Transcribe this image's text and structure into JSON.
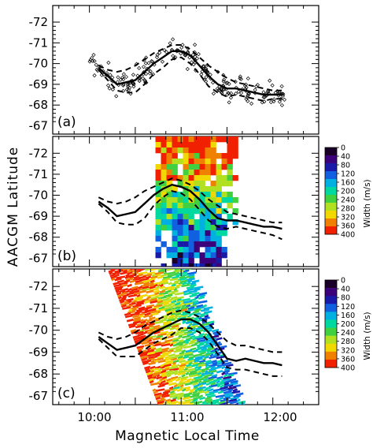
{
  "figure": {
    "ylabel": "AACGM Latitude",
    "xlabel": "Magnetic Local Time",
    "x_ticks": [
      "10:00",
      "11:00",
      "12:00"
    ],
    "y_ticks": [
      "-72",
      "-71",
      "-70",
      "-69",
      "-68",
      "-67"
    ],
    "colorbar": {
      "label": "Width (m/s)",
      "ticks": [
        "0",
        "40",
        "80",
        "120",
        "160",
        "200",
        "240",
        "280",
        "320",
        "360",
        "400"
      ],
      "range": [
        0,
        400
      ],
      "colors": [
        "#1a0028",
        "#3c007a",
        "#1a1aa8",
        "#1060e0",
        "#00b0e0",
        "#00d8a0",
        "#40d040",
        "#b0e020",
        "#f0d800",
        "#f08000",
        "#f02000"
      ]
    }
  },
  "chart_data": [
    {
      "type": "scatter",
      "panel_label": "(a)",
      "x_range_hours": [
        9.6,
        12.5
      ],
      "xlabel": "",
      "ylabel": "AACGM Latitude",
      "ylim": [
        -66.6,
        -72.8
      ],
      "grid": false,
      "scatter_marker": "open diamond",
      "scatter_point_count_approx": 220,
      "mean_line": {
        "x": [
          10.1,
          10.2,
          10.3,
          10.4,
          10.5,
          10.6,
          10.7,
          10.8,
          10.9,
          11.0,
          11.1,
          11.2,
          11.3,
          11.4,
          11.5,
          11.6,
          11.7,
          11.8,
          11.9,
          12.0,
          12.1
        ],
        "y": [
          -69.8,
          -69.4,
          -69.0,
          -69.1,
          -69.2,
          -69.6,
          -70.0,
          -70.3,
          -70.6,
          -70.6,
          -70.4,
          -69.9,
          -69.4,
          -69.0,
          -68.8,
          -68.8,
          -68.7,
          -68.6,
          -68.5,
          -68.5,
          -68.5
        ]
      },
      "upper_band": {
        "x": [
          10.1,
          10.2,
          10.3,
          10.4,
          10.5,
          10.6,
          10.7,
          10.8,
          10.9,
          11.0,
          11.1,
          11.2,
          11.3,
          11.4,
          11.5,
          11.6,
          11.7,
          11.8,
          11.9,
          12.0,
          12.1
        ],
        "y": [
          -69.9,
          -69.7,
          -69.6,
          -69.7,
          -69.9,
          -70.2,
          -70.5,
          -70.7,
          -70.9,
          -70.9,
          -70.7,
          -70.3,
          -69.9,
          -69.6,
          -69.3,
          -69.1,
          -69.0,
          -68.9,
          -68.8,
          -68.7,
          -68.7
        ]
      },
      "lower_band": {
        "x": [
          10.1,
          10.2,
          10.3,
          10.4,
          10.5,
          10.6,
          10.7,
          10.8,
          10.9,
          11.0,
          11.1,
          11.2,
          11.3,
          11.4,
          11.5,
          11.6,
          11.7,
          11.8,
          11.9,
          12.0,
          12.1
        ],
        "y": [
          -69.7,
          -69.2,
          -68.7,
          -68.6,
          -68.6,
          -69.0,
          -69.5,
          -69.8,
          -70.2,
          -70.3,
          -70.0,
          -69.5,
          -68.9,
          -68.6,
          -68.4,
          -68.5,
          -68.4,
          -68.3,
          -68.2,
          -68.3,
          -68.3
        ]
      }
    },
    {
      "type": "heatmap",
      "panel_label": "(b)",
      "x_range_hours": [
        9.6,
        12.5
      ],
      "ylim": [
        -66.6,
        -72.8
      ],
      "value_label": "Width (m/s)",
      "value_range": [
        0,
        400
      ],
      "data_extent_x": [
        10.75,
        11.6
      ],
      "data_extent_y": [
        -66.6,
        -72.8
      ],
      "mean_line": {
        "x": [
          10.1,
          10.2,
          10.3,
          10.4,
          10.5,
          10.6,
          10.7,
          10.8,
          10.9,
          11.0,
          11.1,
          11.2,
          11.3,
          11.4,
          11.5,
          11.6,
          11.7,
          11.8,
          11.9,
          12.0,
          12.1
        ],
        "y": [
          -69.7,
          -69.4,
          -69.0,
          -69.1,
          -69.2,
          -69.6,
          -70.0,
          -70.3,
          -70.5,
          -70.4,
          -70.2,
          -69.8,
          -69.3,
          -68.9,
          -68.8,
          -68.8,
          -68.7,
          -68.6,
          -68.5,
          -68.5,
          -68.4
        ]
      },
      "upper_band": {
        "x": [
          10.1,
          10.2,
          10.3,
          10.4,
          10.5,
          10.6,
          10.7,
          10.8,
          10.9,
          11.0,
          11.1,
          11.2,
          11.3,
          11.4,
          11.5,
          11.6,
          11.7,
          11.8,
          11.9,
          12.0,
          12.1
        ],
        "y": [
          -69.9,
          -69.7,
          -69.6,
          -69.7,
          -69.9,
          -70.2,
          -70.4,
          -70.6,
          -70.8,
          -70.7,
          -70.5,
          -70.2,
          -69.8,
          -69.5,
          -69.2,
          -69.1,
          -69.0,
          -68.9,
          -68.8,
          -68.7,
          -68.7
        ]
      },
      "lower_band": {
        "x": [
          10.1,
          10.2,
          10.3,
          10.4,
          10.5,
          10.6,
          10.7,
          10.8,
          10.9,
          11.0,
          11.1,
          11.2,
          11.3,
          11.4,
          11.5,
          11.6,
          11.7,
          11.8,
          11.9,
          12.0,
          12.1
        ],
        "y": [
          -69.6,
          -69.2,
          -68.7,
          -68.6,
          -68.6,
          -68.9,
          -69.5,
          -69.9,
          -70.2,
          -70.1,
          -69.8,
          -69.3,
          -68.8,
          -68.5,
          -68.4,
          -68.5,
          -68.4,
          -68.3,
          -68.2,
          -68.1,
          -67.9
        ]
      }
    },
    {
      "type": "heatmap",
      "panel_label": "(c)",
      "x_range_hours": [
        9.6,
        12.5
      ],
      "ylim": [
        -66.6,
        -72.8
      ],
      "value_label": "Width (m/s)",
      "value_range": [
        0,
        400
      ],
      "data_extent_x": [
        10.2,
        11.55
      ],
      "data_extent_y": [
        -66.6,
        -72.8
      ],
      "mean_line": {
        "x": [
          10.1,
          10.2,
          10.3,
          10.4,
          10.5,
          10.6,
          10.7,
          10.8,
          10.9,
          11.0,
          11.1,
          11.2,
          11.3,
          11.4,
          11.5,
          11.6,
          11.7,
          11.8,
          11.9,
          12.0,
          12.1
        ],
        "y": [
          -69.7,
          -69.4,
          -69.1,
          -69.2,
          -69.3,
          -69.6,
          -69.9,
          -70.1,
          -70.3,
          -70.5,
          -70.5,
          -70.3,
          -69.9,
          -69.3,
          -68.7,
          -68.6,
          -68.7,
          -68.6,
          -68.5,
          -68.5,
          -68.4
        ]
      },
      "upper_band": {
        "x": [
          10.1,
          10.2,
          10.3,
          10.4,
          10.5,
          10.6,
          10.7,
          10.8,
          10.9,
          11.0,
          11.1,
          11.2,
          11.3,
          11.4,
          11.5,
          11.6,
          11.7,
          11.8,
          11.9,
          12.0,
          12.1
        ],
        "y": [
          -69.9,
          -69.7,
          -69.6,
          -69.7,
          -69.9,
          -70.2,
          -70.4,
          -70.6,
          -70.8,
          -70.9,
          -70.8,
          -70.6,
          -70.3,
          -69.9,
          -69.5,
          -69.3,
          -69.3,
          -69.2,
          -69.1,
          -69.0,
          -69.0
        ]
      },
      "lower_band": {
        "x": [
          10.1,
          10.2,
          10.3,
          10.4,
          10.5,
          10.6,
          10.7,
          10.8,
          10.9,
          11.0,
          11.1,
          11.2,
          11.3,
          11.4,
          11.5,
          11.6,
          11.7,
          11.8,
          11.9,
          12.0,
          12.1
        ],
        "y": [
          -69.6,
          -69.2,
          -68.8,
          -68.8,
          -68.8,
          -69.1,
          -69.4,
          -69.6,
          -69.8,
          -70.1,
          -70.1,
          -69.9,
          -69.5,
          -68.9,
          -68.3,
          -68.2,
          -68.2,
          -68.1,
          -68.0,
          -67.9,
          -67.9
        ]
      }
    }
  ]
}
